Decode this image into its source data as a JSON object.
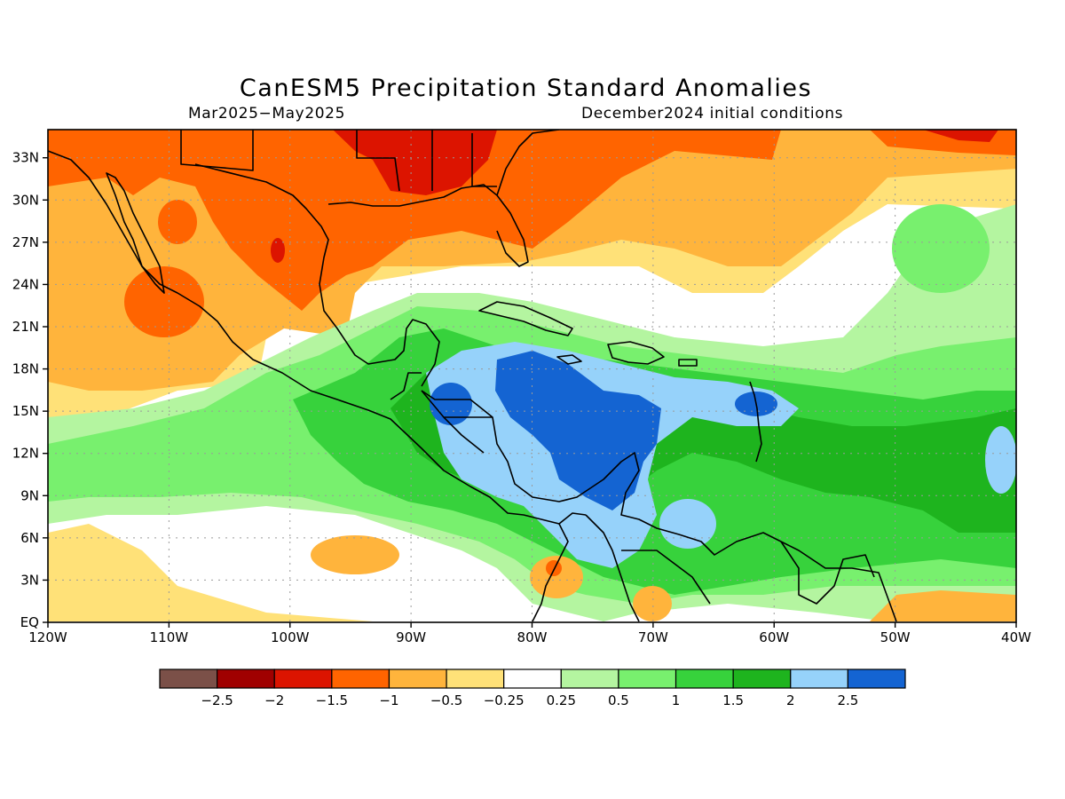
{
  "title": "CanESM5 Precipitation Standard Anomalies",
  "period": "Mar2025−May2025",
  "initial_conditions": "December2024 initial conditions",
  "map": {
    "lon_range": [
      -120,
      -40
    ],
    "lat_range": [
      0,
      35
    ],
    "lon_ticks": [
      {
        "value": -120,
        "label": "120W"
      },
      {
        "value": -110,
        "label": "110W"
      },
      {
        "value": -100,
        "label": "100W"
      },
      {
        "value": -90,
        "label": "90W"
      },
      {
        "value": -80,
        "label": "80W"
      },
      {
        "value": -70,
        "label": "70W"
      },
      {
        "value": -60,
        "label": "60W"
      },
      {
        "value": -50,
        "label": "50W"
      },
      {
        "value": -40,
        "label": "40W"
      }
    ],
    "lat_ticks": [
      {
        "value": 0,
        "label": "EQ"
      },
      {
        "value": 3,
        "label": "3N"
      },
      {
        "value": 6,
        "label": "6N"
      },
      {
        "value": 9,
        "label": "9N"
      },
      {
        "value": 12,
        "label": "12N"
      },
      {
        "value": 15,
        "label": "15N"
      },
      {
        "value": 18,
        "label": "18N"
      },
      {
        "value": 21,
        "label": "21N"
      },
      {
        "value": 24,
        "label": "24N"
      },
      {
        "value": 27,
        "label": "27N"
      },
      {
        "value": 30,
        "label": "30N"
      },
      {
        "value": 33,
        "label": "33N"
      }
    ],
    "gridlines": true
  },
  "legend": {
    "colors": [
      "#7b5048",
      "#a00000",
      "#dc1400",
      "#ff6400",
      "#ffb43c",
      "#ffe178",
      "#ffffff",
      "#b4f5a0",
      "#78f06e",
      "#37d23c",
      "#1eb41e",
      "#96d2fa",
      "#1464d2"
    ],
    "labels": [
      "−2.5",
      "−2",
      "−1.5",
      "−1",
      "−0.5",
      "−0.25",
      "0.25",
      "0.5",
      "1",
      "1.5",
      "2",
      "2.5"
    ]
  }
}
